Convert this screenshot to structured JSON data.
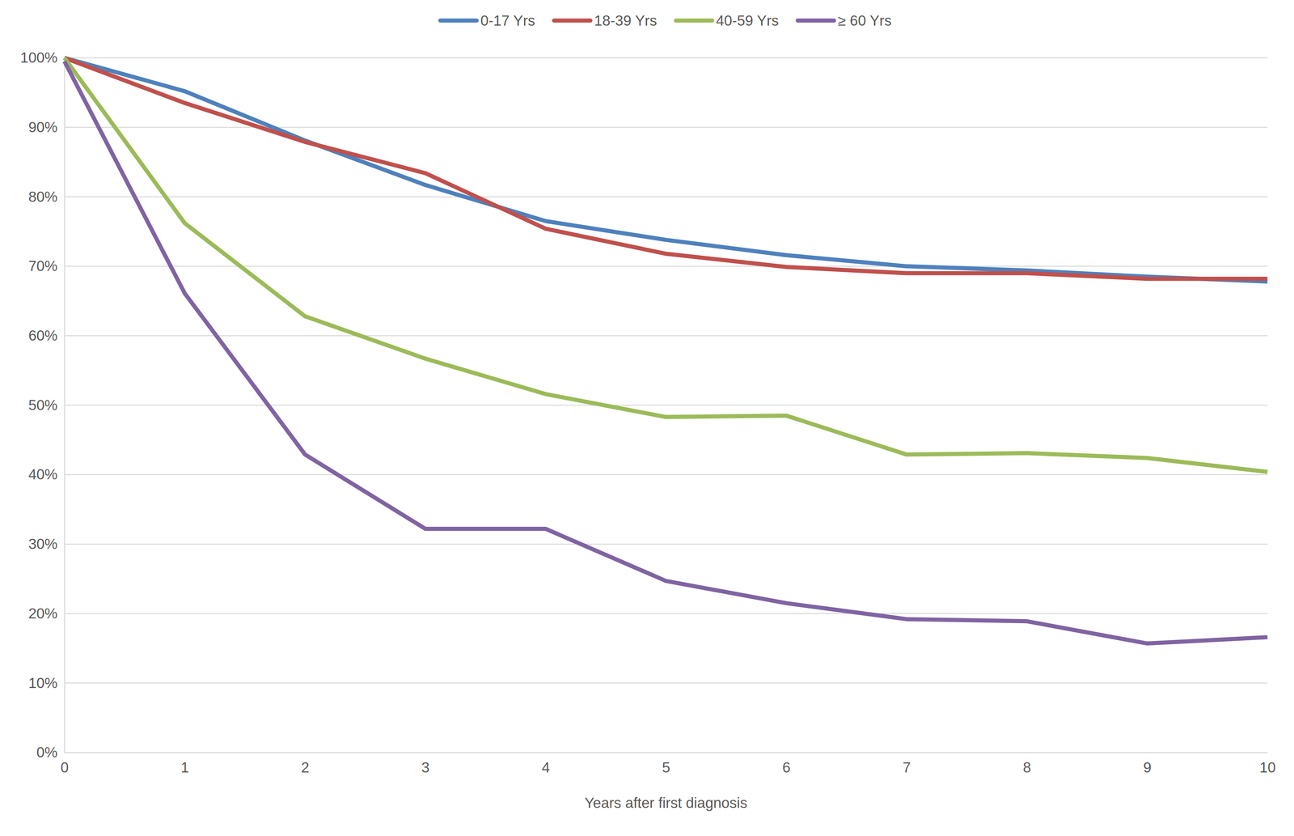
{
  "chart_data": {
    "type": "line",
    "x_label": "Years after first diagnosis",
    "x": [
      0,
      1,
      2,
      3,
      4,
      5,
      6,
      7,
      8,
      9,
      10
    ],
    "series": [
      {
        "name": "0-17 Yrs",
        "color": "#4f81bd",
        "values": [
          100,
          95.2,
          88.1,
          81.7,
          76.5,
          73.8,
          71.6,
          70.0,
          69.4,
          68.5,
          67.8
        ]
      },
      {
        "name": "18-39 Yrs",
        "color": "#c0504d",
        "values": [
          100,
          93.5,
          87.9,
          83.4,
          75.4,
          71.8,
          69.9,
          69.0,
          69.0,
          68.2,
          68.2
        ]
      },
      {
        "name": "40-59 Yrs",
        "color": "#9bbb59",
        "values": [
          100,
          76.2,
          62.8,
          56.7,
          51.6,
          48.3,
          48.5,
          42.9,
          43.1,
          42.4,
          40.4
        ]
      },
      {
        "name": "≥ 60 Yrs",
        "color": "#8064a2",
        "values": [
          99.5,
          66.1,
          42.9,
          32.2,
          32.2,
          24.7,
          21.5,
          19.2,
          18.9,
          15.7,
          16.6
        ]
      }
    ],
    "xlim": [
      0,
      10
    ],
    "xticks": [
      0,
      1,
      2,
      3,
      4,
      5,
      6,
      7,
      8,
      9,
      10
    ],
    "ylim": [
      0,
      100
    ],
    "yticks": [
      {
        "value": 0,
        "label": "0%"
      },
      {
        "value": 10,
        "label": "10%"
      },
      {
        "value": 20,
        "label": "20%"
      },
      {
        "value": 30,
        "label": "30%"
      },
      {
        "value": 40,
        "label": "40%"
      },
      {
        "value": 50,
        "label": "50%"
      },
      {
        "value": 60,
        "label": "60%"
      },
      {
        "value": 70,
        "label": "70%"
      },
      {
        "value": 80,
        "label": "80%"
      },
      {
        "value": 90,
        "label": "90%"
      },
      {
        "value": 100,
        "label": "100%"
      }
    ],
    "grid": true,
    "legend": "top"
  }
}
